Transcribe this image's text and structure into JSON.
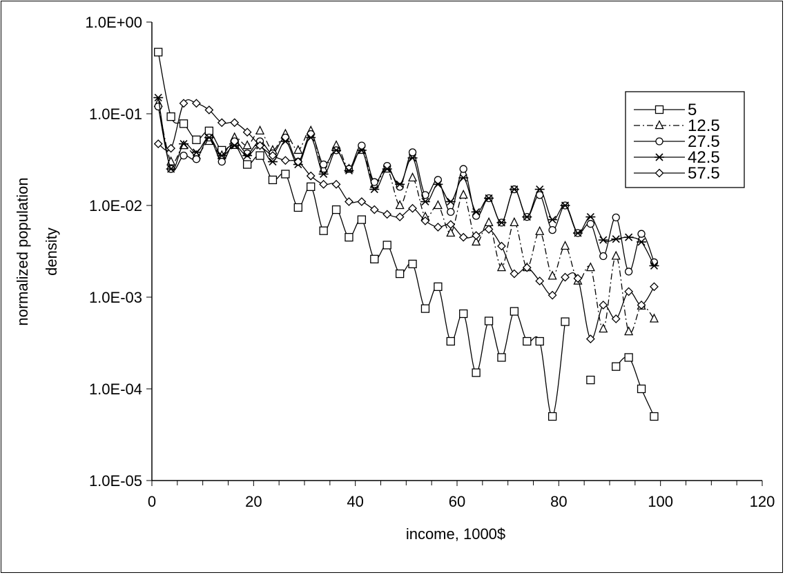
{
  "chart_data": {
    "type": "line",
    "xlabel": "income, 1000$",
    "ylabel_lines": [
      "normalized population",
      "density"
    ],
    "xlim": [
      0,
      120
    ],
    "ylim": [
      1e-05,
      1
    ],
    "yscale": "log",
    "x_ticks": [
      0,
      20,
      40,
      60,
      80,
      100,
      120
    ],
    "x_tick_labels": [
      "0",
      "20",
      "40",
      "60",
      "80",
      "100",
      "120"
    ],
    "y_ticks": [
      1,
      0.1,
      0.01,
      0.001,
      0.0001,
      1e-05
    ],
    "y_tick_labels": [
      "1.0E+00",
      "1.0E-01",
      "1.0E-02",
      "1.0E-03",
      "1.0E-04",
      "1.0E-05"
    ],
    "grid": false,
    "legend_position": "top-right",
    "x": [
      1.25,
      3.75,
      6.25,
      8.75,
      11.25,
      13.75,
      16.25,
      18.75,
      21.25,
      23.75,
      26.25,
      28.75,
      31.25,
      33.75,
      36.25,
      38.75,
      41.25,
      43.75,
      46.25,
      48.75,
      51.25,
      53.75,
      56.25,
      58.75,
      61.25,
      63.75,
      66.25,
      68.75,
      71.25,
      73.75,
      76.25,
      78.75,
      81.25,
      83.75,
      86.25,
      88.75,
      91.25,
      93.75,
      96.25,
      98.75
    ],
    "series": [
      {
        "name": "5",
        "marker": "square",
        "dash": "solid",
        "values": [
          0.47,
          0.093,
          0.078,
          0.052,
          0.065,
          0.04,
          0.046,
          0.028,
          0.035,
          0.019,
          0.022,
          0.0095,
          0.016,
          0.0053,
          0.009,
          0.0045,
          0.007,
          0.0026,
          0.0037,
          0.0018,
          0.0023,
          0.00075,
          0.0013,
          0.00033,
          0.00066,
          0.00015,
          0.00055,
          0.00022,
          0.0007,
          0.00033,
          0.00033,
          5e-05,
          0.00054,
          null,
          0.000125,
          null,
          0.000175,
          0.00022,
          0.0001,
          5e-05
        ]
      },
      {
        "name": "12.5",
        "marker": "triangle",
        "dash": "dashdot",
        "values": [
          0.13,
          0.03,
          0.045,
          0.035,
          0.05,
          0.035,
          0.055,
          0.045,
          0.065,
          0.04,
          0.06,
          0.04,
          0.065,
          0.025,
          0.045,
          0.025,
          0.04,
          0.017,
          0.025,
          0.01,
          0.02,
          0.0075,
          0.01,
          0.005,
          0.013,
          0.004,
          0.0065,
          0.0021,
          0.0065,
          0.0021,
          0.0052,
          0.0017,
          0.0036,
          0.0015,
          0.0021,
          0.00045,
          0.0028,
          0.00042,
          0.0008,
          0.00058
        ]
      },
      {
        "name": "27.5",
        "marker": "circle",
        "dash": "solid",
        "values": [
          0.12,
          0.025,
          0.035,
          0.032,
          0.055,
          0.03,
          0.05,
          0.037,
          0.05,
          0.037,
          0.055,
          0.03,
          0.06,
          0.028,
          0.04,
          0.025,
          0.045,
          0.018,
          0.027,
          0.016,
          0.038,
          0.013,
          0.019,
          0.0085,
          0.025,
          0.0077,
          0.012,
          0.0065,
          0.015,
          0.0075,
          0.013,
          0.0054,
          0.01,
          0.005,
          0.0063,
          0.0028,
          0.0074,
          0.0019,
          0.0049,
          0.0024
        ]
      },
      {
        "name": "42.5",
        "marker": "star",
        "dash": "solid",
        "values": [
          0.15,
          0.025,
          0.047,
          0.038,
          0.055,
          0.035,
          0.045,
          0.035,
          0.045,
          0.03,
          0.05,
          0.028,
          0.055,
          0.022,
          0.04,
          0.024,
          0.04,
          0.015,
          0.025,
          0.017,
          0.033,
          0.011,
          0.017,
          0.011,
          0.02,
          0.0085,
          0.012,
          0.0065,
          0.015,
          0.0075,
          0.015,
          0.007,
          0.01,
          0.005,
          0.0075,
          0.0042,
          0.0043,
          0.0045,
          0.004,
          0.0022
        ]
      },
      {
        "name": "57.5",
        "marker": "diamond",
        "dash": "solid",
        "values": [
          0.047,
          0.042,
          0.13,
          0.13,
          0.11,
          0.08,
          0.08,
          0.063,
          0.045,
          0.035,
          0.031,
          0.03,
          0.021,
          0.017,
          0.017,
          0.011,
          0.011,
          0.009,
          0.008,
          0.0075,
          0.0093,
          0.0068,
          0.0058,
          0.0062,
          0.0045,
          0.0047,
          0.0055,
          0.0036,
          0.0018,
          0.0021,
          0.0015,
          0.00105,
          0.00165,
          0.0016,
          0.00035,
          0.00082,
          0.00058,
          0.00115,
          0.00082,
          0.0013
        ]
      }
    ]
  }
}
